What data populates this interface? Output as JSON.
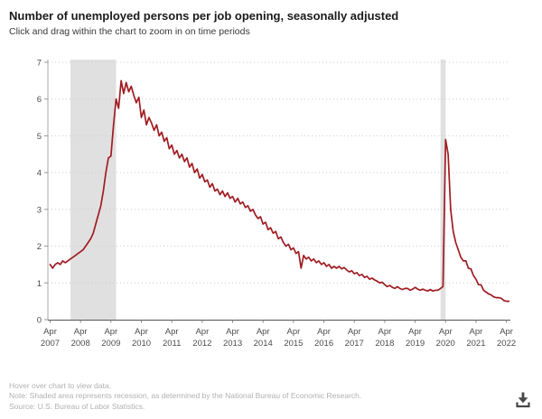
{
  "header": {
    "title": "Number of unemployed persons per job opening, seasonally adjusted",
    "subtitle": "Click and drag within the chart to zoom in on time periods"
  },
  "chart_data": {
    "type": "line",
    "title": "Number of unemployed persons per job opening, seasonally adjusted",
    "xlabel": "",
    "ylabel": "",
    "ylim": [
      0,
      7
    ],
    "yticks": [
      0,
      1,
      2,
      3,
      4,
      5,
      6,
      7
    ],
    "grid": "dotted-horizontal",
    "legend": "none",
    "x_start": "2007-04",
    "x_end": "2022-04",
    "frequency": "monthly",
    "x_tick_labels": [
      {
        "month": "Apr",
        "year": "2007"
      },
      {
        "month": "Apr",
        "year": "2008"
      },
      {
        "month": "Apr",
        "year": "2009"
      },
      {
        "month": "Apr",
        "year": "2010"
      },
      {
        "month": "Apr",
        "year": "2011"
      },
      {
        "month": "Apr",
        "year": "2012"
      },
      {
        "month": "Apr",
        "year": "2013"
      },
      {
        "month": "Apr",
        "year": "2014"
      },
      {
        "month": "Apr",
        "year": "2015"
      },
      {
        "month": "Apr",
        "year": "2016"
      },
      {
        "month": "Apr",
        "year": "2017"
      },
      {
        "month": "Apr",
        "year": "2018"
      },
      {
        "month": "Apr",
        "year": "2019"
      },
      {
        "month": "Apr",
        "year": "2020"
      },
      {
        "month": "Apr",
        "year": "2021"
      },
      {
        "month": "Apr",
        "year": "2022"
      }
    ],
    "line_color": "#a01c22",
    "recession_band_color": "#e0e0e0",
    "recessions": [
      {
        "start": "2007-12",
        "end": "2009-06"
      },
      {
        "start": "2020-02",
        "end": "2020-04"
      }
    ],
    "series": [
      {
        "name": "Unemployed persons per job opening",
        "values": [
          1.5,
          1.4,
          1.5,
          1.55,
          1.5,
          1.6,
          1.55,
          1.6,
          1.65,
          1.7,
          1.75,
          1.8,
          1.85,
          1.9,
          2.0,
          2.1,
          2.2,
          2.35,
          2.6,
          2.85,
          3.1,
          3.5,
          4.0,
          4.4,
          4.45,
          5.3,
          6.0,
          5.75,
          6.5,
          6.15,
          6.45,
          6.2,
          6.35,
          6.1,
          5.9,
          6.05,
          5.5,
          5.7,
          5.3,
          5.5,
          5.35,
          5.15,
          5.3,
          5.0,
          5.1,
          4.85,
          4.95,
          4.65,
          4.75,
          4.5,
          4.6,
          4.4,
          4.5,
          4.3,
          4.4,
          4.15,
          4.25,
          4.0,
          4.1,
          3.85,
          3.95,
          3.75,
          3.8,
          3.6,
          3.7,
          3.5,
          3.55,
          3.4,
          3.5,
          3.35,
          3.45,
          3.3,
          3.35,
          3.2,
          3.3,
          3.15,
          3.2,
          3.05,
          3.1,
          2.95,
          3.0,
          2.85,
          2.75,
          2.8,
          2.6,
          2.65,
          2.45,
          2.5,
          2.35,
          2.4,
          2.2,
          2.25,
          2.1,
          2.0,
          2.05,
          1.9,
          1.95,
          1.8,
          1.85,
          1.4,
          1.75,
          1.65,
          1.7,
          1.6,
          1.65,
          1.55,
          1.6,
          1.5,
          1.55,
          1.45,
          1.5,
          1.4,
          1.45,
          1.4,
          1.45,
          1.38,
          1.42,
          1.35,
          1.3,
          1.33,
          1.25,
          1.28,
          1.2,
          1.23,
          1.15,
          1.18,
          1.1,
          1.13,
          1.08,
          1.05,
          1.0,
          1.02,
          0.95,
          0.9,
          0.93,
          0.88,
          0.85,
          0.9,
          0.85,
          0.82,
          0.85,
          0.85,
          0.8,
          0.83,
          0.88,
          0.83,
          0.8,
          0.83,
          0.8,
          0.78,
          0.82,
          0.78,
          0.8,
          0.8,
          0.85,
          0.9,
          4.9,
          4.5,
          3.0,
          2.4,
          2.1,
          1.9,
          1.7,
          1.6,
          1.6,
          1.4,
          1.38,
          1.2,
          1.1,
          0.95,
          0.95,
          0.8,
          0.75,
          0.7,
          0.67,
          0.62,
          0.6,
          0.6,
          0.58,
          0.52,
          0.5,
          0.5
        ]
      }
    ]
  },
  "footer": {
    "hover_note": "Hover over chart to view data.",
    "recession_note": "Note: Shaded area represents recession, as determined by the National Bureau of Economic Research.",
    "source_note": "Source: U.S. Bureau of Labor Statistics."
  },
  "icons": {
    "download": "download-icon"
  }
}
